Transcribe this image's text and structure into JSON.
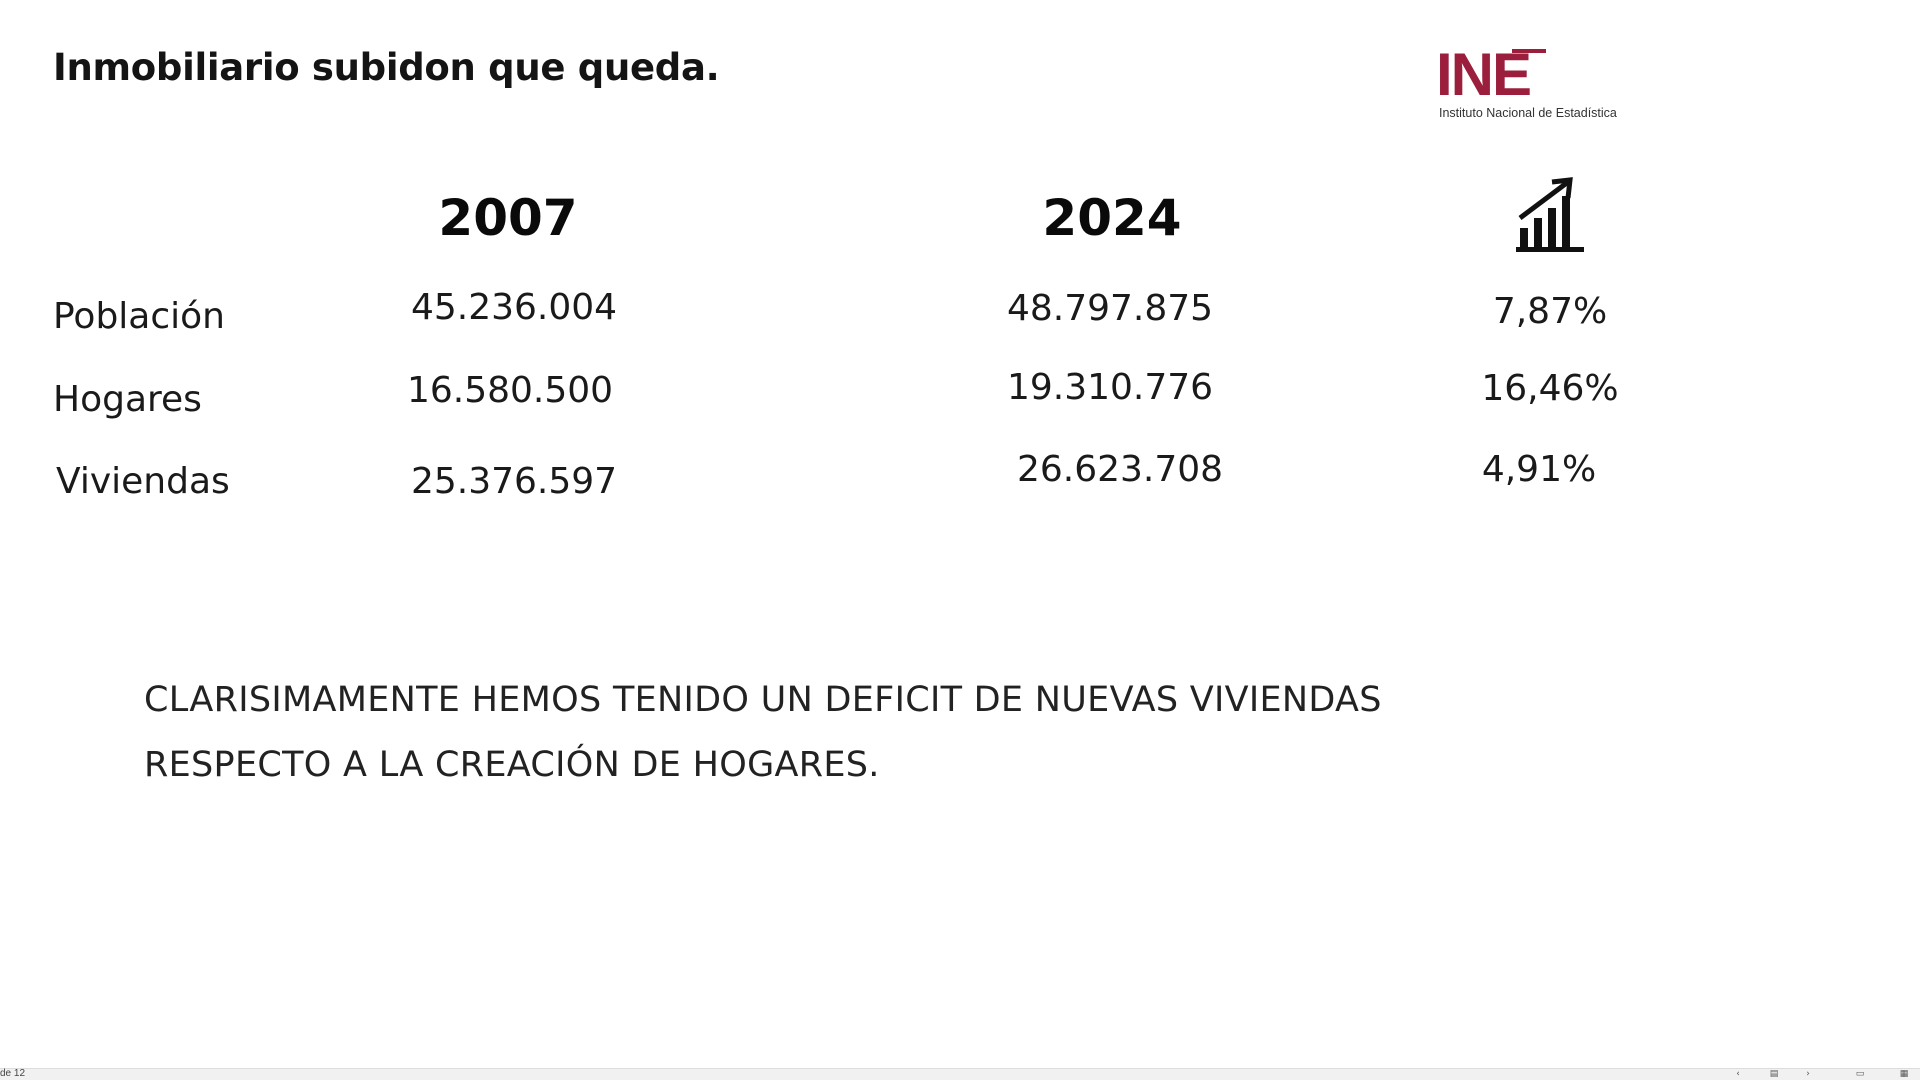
{
  "slide": {
    "title": "Inmobiliario subidon que queda.",
    "logo": {
      "mark": "INE",
      "subtitle": "Instituto Nacional de Estadística",
      "color": "#9b1f3c"
    },
    "table": {
      "headers": [
        "2007",
        "2024"
      ],
      "change_icon": "bar-chart-trend-up-icon",
      "rows": [
        {
          "label": "Población",
          "v2007": "45.236.004",
          "v2024": "48.797.875",
          "change": "7,87%"
        },
        {
          "label": "Hogares",
          "v2007": "16.580.500",
          "v2024": "19.310.776",
          "change": "16,46%"
        },
        {
          "label": "Viviendas",
          "v2007": "25.376.597",
          "v2024": "26.623.708",
          "change": "4,91%"
        }
      ]
    },
    "conclusion": {
      "line1": "CLARISIMAMENTE HEMOS TENIDO UN DEFICIT DE NUEVAS VIVIENDAS",
      "line2": "RESPECTO A LA CREACIÓN DE HOGARES."
    }
  },
  "statusbar": {
    "slide_counter": "de 12",
    "buttons": {
      "prev": "‹",
      "notes": "▤",
      "next": "›",
      "normal_view": "▭",
      "sorter_view": "▦"
    }
  }
}
